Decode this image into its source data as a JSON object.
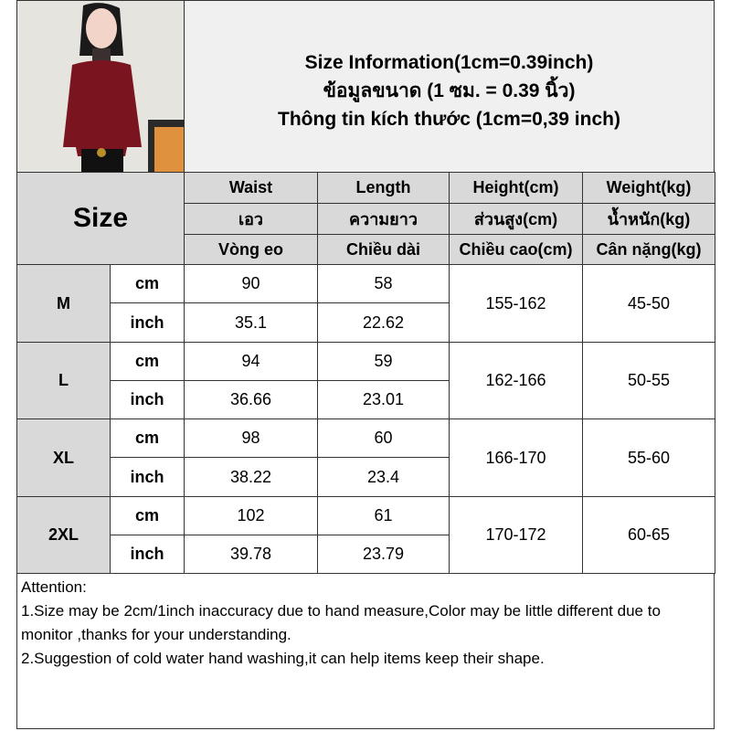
{
  "header": {
    "line1": "Size Information(1cm=0.39inch)",
    "line2": "ข้อมูลขนาด (1 ซม. = 0.39 นิ้ว)",
    "line3": "Thông tin kích thước (1cm=0,39 inch)"
  },
  "size_label": "Size",
  "columns": [
    {
      "en": "Waist",
      "th": "เอว",
      "vi": "Vòng eo"
    },
    {
      "en": "Length",
      "th": "ความยาว",
      "vi": "Chiều dài"
    },
    {
      "en": "Height(cm)",
      "th": "ส่วนสูง(cm)",
      "vi": "Chiều cao(cm)"
    },
    {
      "en": "Weight(kg)",
      "th": "น้ำหนัก(kg)",
      "vi": "Cân nặng(kg)"
    }
  ],
  "rows": [
    {
      "size": "M",
      "cm_label": "cm",
      "inch_label": "inch",
      "waist_cm": "90",
      "length_cm": "58",
      "waist_inch": "35.1",
      "length_inch": "22.62",
      "height": "155-162",
      "weight": "45-50"
    },
    {
      "size": "L",
      "cm_label": "cm",
      "inch_label": "inch",
      "waist_cm": "94",
      "length_cm": "59",
      "waist_inch": "36.66",
      "length_inch": "23.01",
      "height": "162-166",
      "weight": "50-55"
    },
    {
      "size": "XL",
      "cm_label": "cm",
      "inch_label": "inch",
      "waist_cm": "98",
      "length_cm": "60",
      "waist_inch": "38.22",
      "length_inch": "23.4",
      "height": "166-170",
      "weight": "55-60"
    },
    {
      "size": "2XL",
      "cm_label": "cm",
      "inch_label": "inch",
      "waist_cm": "102",
      "length_cm": "61",
      "waist_inch": "39.78",
      "length_inch": "23.79",
      "height": "170-172",
      "weight": "60-65"
    }
  ],
  "attention": {
    "title": "Attention:",
    "item1": "1.Size may be 2cm/1inch inaccuracy due to hand measure,Color may be little different due to monitor ,thanks for your understanding.",
    "item2": "2.Suggestion of cold water hand washing,it can help items keep their shape."
  }
}
